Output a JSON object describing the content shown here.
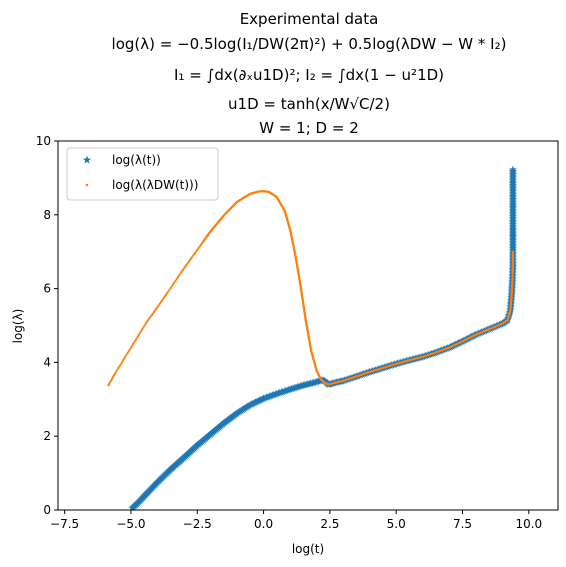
{
  "chart_data": {
    "type": "scatter",
    "title_lines": [
      "Experimental data",
      "log(λ) = −0.5log(I₁/DW(2π)²) + 0.5log(λDW − W * I₂)",
      "I₁ = ∫dx(∂ₓu1D)²; I₂ = ∫dx(1 − u²1D)",
      "u1D = tanh(x/W√C/2)",
      "W = 1; D = 2"
    ],
    "xlabel": "log(t)",
    "ylabel": "log(λ)",
    "xlim": [
      -7.75,
      11.1
    ],
    "ylim": [
      0,
      10
    ],
    "xticks": [
      -7.5,
      -5.0,
      -2.5,
      0.0,
      2.5,
      5.0,
      7.5,
      10.0
    ],
    "xtick_labels": [
      "−7.5",
      "−5.0",
      "−2.5",
      "0.0",
      "2.5",
      "5.0",
      "7.5",
      "10.0"
    ],
    "yticks": [
      0,
      2,
      4,
      6,
      8,
      10
    ],
    "ytick_labels": [
      "0",
      "2",
      "4",
      "6",
      "8",
      "10"
    ],
    "legend_position": "upper-left",
    "series": [
      {
        "name": "log(λ(t))",
        "color": "#1f77b4",
        "marker": "star",
        "x": [
          -4.95,
          -4.7,
          -4.4,
          -4.0,
          -3.5,
          -3.0,
          -2.5,
          -2.0,
          -1.5,
          -1.0,
          -0.5,
          0.0,
          0.5,
          1.0,
          1.5,
          2.0,
          2.2,
          2.3,
          2.45,
          2.7,
          3.0,
          3.5,
          4.0,
          4.5,
          5.0,
          5.5,
          6.0,
          6.5,
          7.0,
          7.5,
          8.0,
          8.5,
          9.0,
          9.2,
          9.3,
          9.35,
          9.38,
          9.4,
          9.4,
          9.4,
          9.4,
          9.4,
          9.4,
          9.4
        ],
        "y": [
          0.05,
          0.22,
          0.45,
          0.75,
          1.1,
          1.42,
          1.75,
          2.05,
          2.35,
          2.62,
          2.85,
          3.02,
          3.15,
          3.27,
          3.38,
          3.47,
          3.52,
          3.5,
          3.4,
          3.45,
          3.5,
          3.62,
          3.74,
          3.85,
          3.96,
          4.06,
          4.15,
          4.27,
          4.4,
          4.57,
          4.75,
          4.9,
          5.05,
          5.15,
          5.4,
          5.8,
          6.2,
          6.6,
          7.0,
          7.3,
          7.45,
          7.65,
          8.08,
          9.22
        ]
      },
      {
        "name": "log(λ(λDW(t)))",
        "color": "#ff7f0e",
        "marker": "point",
        "x": [
          -5.85,
          -5.6,
          -5.3,
          -5.0,
          -4.7,
          -4.4,
          -4.0,
          -3.5,
          -3.0,
          -2.5,
          -2.0,
          -1.5,
          -1.0,
          -0.5,
          -0.2,
          0.0,
          0.2,
          0.5,
          0.8,
          1.0,
          1.2,
          1.4,
          1.6,
          1.8,
          2.0,
          2.15,
          2.3,
          2.45,
          2.7,
          3.0,
          3.5,
          4.0,
          4.5,
          5.0,
          5.5,
          6.0,
          6.5,
          7.0,
          7.5,
          8.0,
          8.5,
          9.0,
          9.2,
          9.3,
          9.35,
          9.38,
          9.4,
          9.4,
          9.4
        ],
        "y": [
          3.38,
          3.7,
          4.05,
          4.4,
          4.75,
          5.1,
          5.5,
          6.02,
          6.55,
          7.05,
          7.55,
          7.98,
          8.35,
          8.57,
          8.63,
          8.64,
          8.62,
          8.48,
          8.1,
          7.6,
          6.9,
          6.05,
          5.1,
          4.3,
          3.78,
          3.55,
          3.45,
          3.4,
          3.45,
          3.5,
          3.62,
          3.74,
          3.85,
          3.96,
          4.06,
          4.15,
          4.27,
          4.4,
          4.57,
          4.75,
          4.9,
          5.05,
          5.15,
          5.4,
          5.8,
          6.2,
          6.6,
          6.85,
          7.0
        ]
      }
    ]
  }
}
